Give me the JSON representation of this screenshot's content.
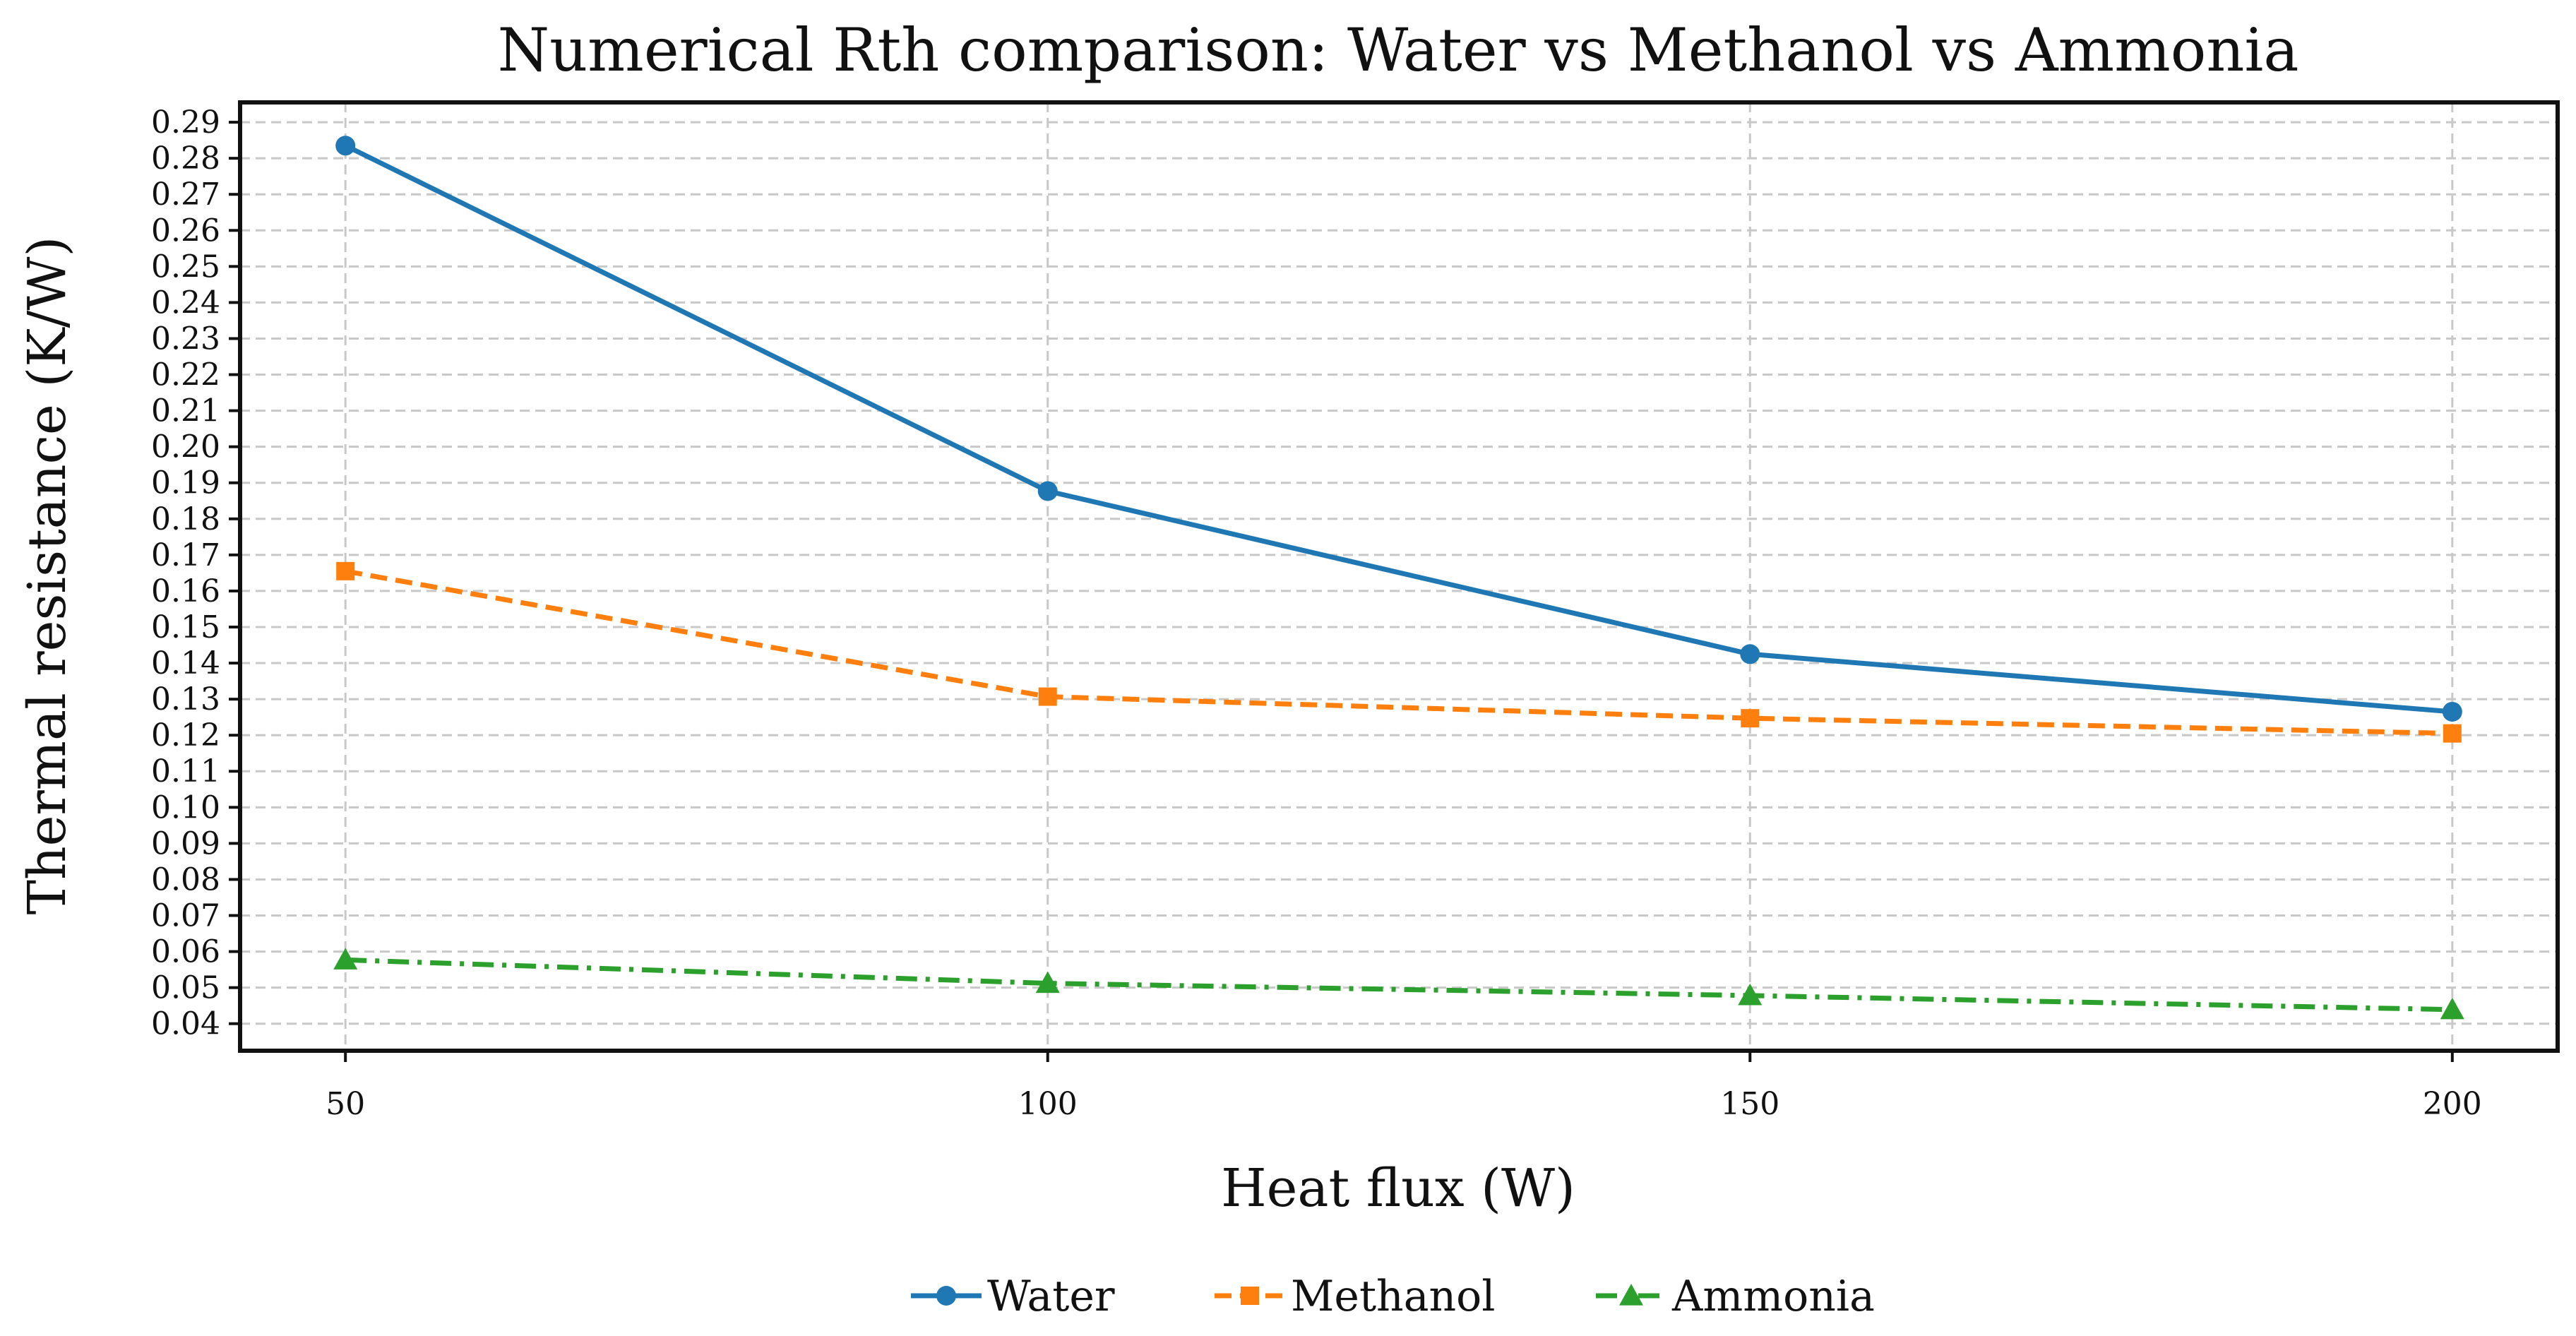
{
  "chart_data": {
    "type": "line",
    "title": "Numerical Rth comparison: Water vs Methanol vs Ammonia",
    "xlabel": "Heat flux (W)",
    "ylabel": "Thermal resistance (K/W)",
    "x": [
      50,
      100,
      150,
      200
    ],
    "x_ticks": [
      "50",
      "100",
      "150",
      "200"
    ],
    "xlim": [
      42.5,
      207.5
    ],
    "ylim": [
      0.0325,
      0.2955
    ],
    "y_ticks": [
      "0.04",
      "0.05",
      "0.06",
      "0.07",
      "0.08",
      "0.09",
      "0.10",
      "0.11",
      "0.12",
      "0.13",
      "0.14",
      "0.15",
      "0.16",
      "0.17",
      "0.18",
      "0.19",
      "0.20",
      "0.21",
      "0.22",
      "0.23",
      "0.24",
      "0.25",
      "0.26",
      "0.27",
      "0.28",
      "0.29"
    ],
    "grid": true,
    "legend_position": "bottom-center",
    "series": [
      {
        "name": "Water",
        "values": [
          0.2835,
          0.1877,
          0.1425,
          0.1265
        ],
        "color": "#1f77b4",
        "marker": "circle",
        "linestyle": "solid"
      },
      {
        "name": "Methanol",
        "values": [
          0.1655,
          0.1307,
          0.1247,
          0.1205
        ],
        "color": "#ff7f0e",
        "marker": "square",
        "linestyle": "dashed"
      },
      {
        "name": "Ammonia",
        "values": [
          0.0577,
          0.0512,
          0.0478,
          0.0439
        ],
        "color": "#2ca02c",
        "marker": "triangle",
        "linestyle": "dashdot"
      }
    ]
  }
}
